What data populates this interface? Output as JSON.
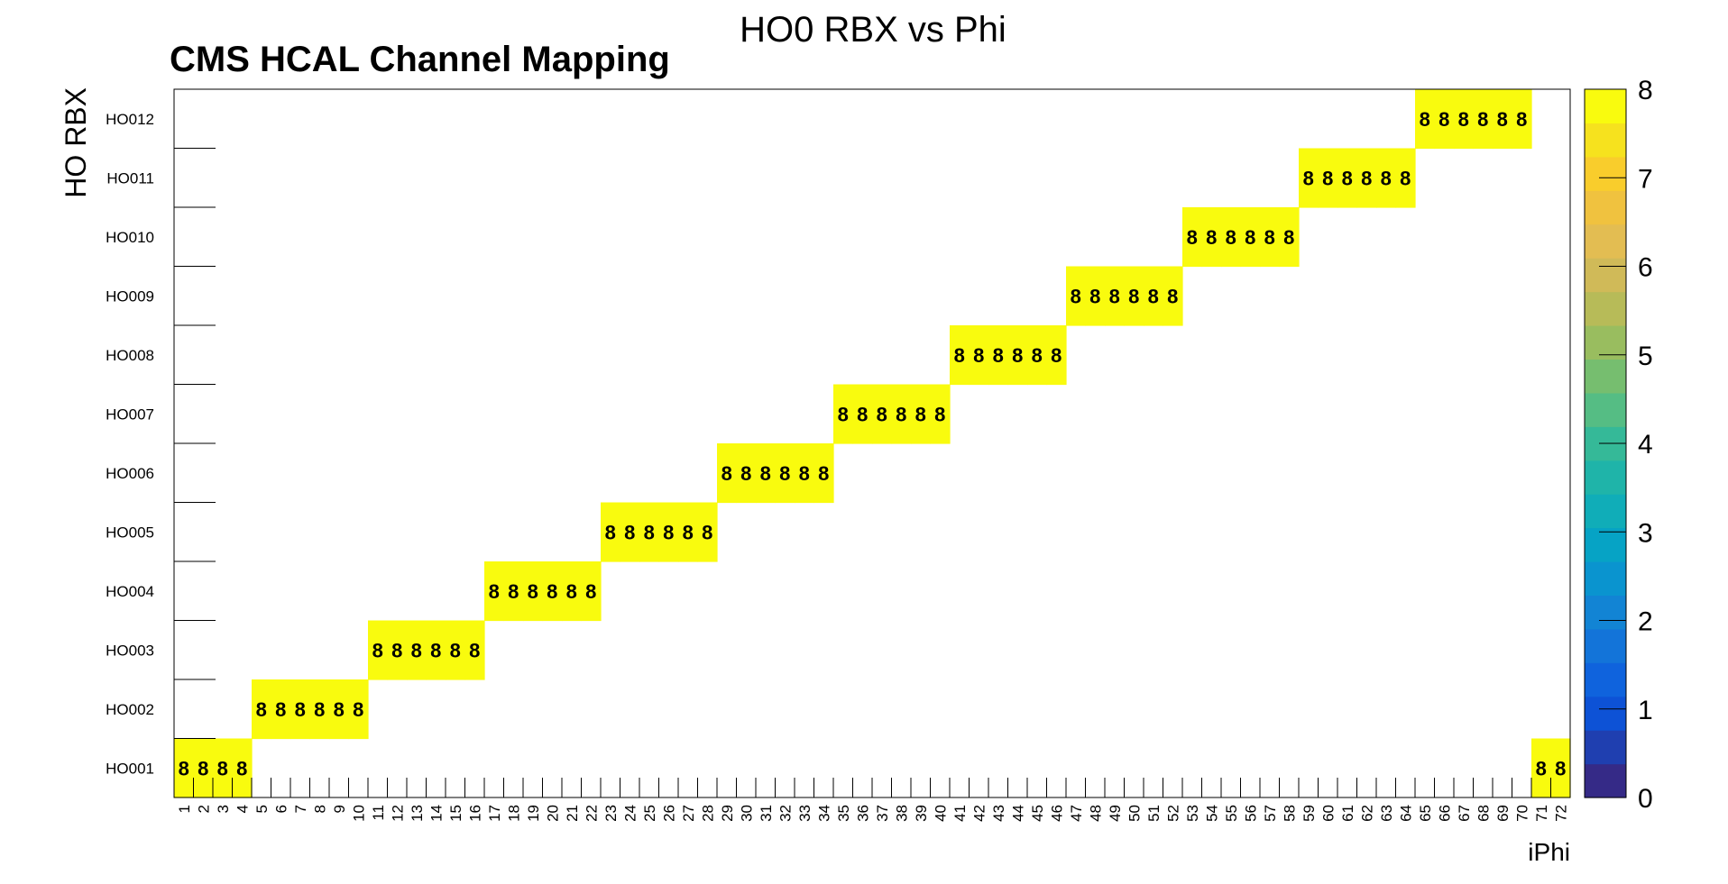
{
  "chart_data": {
    "type": "heatmap",
    "title": "HO0 RBX vs Phi",
    "subtitle": "CMS HCAL Channel Mapping",
    "xlabel": "iPhi",
    "ylabel": "HO RBX",
    "x_categories": [
      "1",
      "2",
      "3",
      "4",
      "5",
      "6",
      "7",
      "8",
      "9",
      "10",
      "11",
      "12",
      "13",
      "14",
      "15",
      "16",
      "17",
      "18",
      "19",
      "20",
      "21",
      "22",
      "23",
      "24",
      "25",
      "26",
      "27",
      "28",
      "29",
      "30",
      "31",
      "32",
      "33",
      "34",
      "35",
      "36",
      "37",
      "38",
      "39",
      "40",
      "41",
      "42",
      "43",
      "44",
      "45",
      "46",
      "47",
      "48",
      "49",
      "50",
      "51",
      "52",
      "53",
      "54",
      "55",
      "56",
      "57",
      "58",
      "59",
      "60",
      "61",
      "62",
      "63",
      "64",
      "65",
      "66",
      "67",
      "68",
      "69",
      "70",
      "71",
      "72"
    ],
    "y_categories": [
      "HO001",
      "HO002",
      "HO003",
      "HO004",
      "HO005",
      "HO006",
      "HO007",
      "HO008",
      "HO009",
      "HO010",
      "HO011",
      "HO012"
    ],
    "zlim": [
      0,
      8
    ],
    "colorbar_ticks": [
      "0",
      "1",
      "2",
      "3",
      "4",
      "5",
      "6",
      "7",
      "8"
    ],
    "cells": [
      {
        "rbx": "HO001",
        "iphi": [
          1,
          2,
          3,
          4,
          71,
          72
        ],
        "value": 8
      },
      {
        "rbx": "HO002",
        "iphi": [
          5,
          6,
          7,
          8,
          9,
          10
        ],
        "value": 8
      },
      {
        "rbx": "HO003",
        "iphi": [
          11,
          12,
          13,
          14,
          15,
          16
        ],
        "value": 8
      },
      {
        "rbx": "HO004",
        "iphi": [
          17,
          18,
          19,
          20,
          21,
          22
        ],
        "value": 8
      },
      {
        "rbx": "HO005",
        "iphi": [
          23,
          24,
          25,
          26,
          27,
          28
        ],
        "value": 8
      },
      {
        "rbx": "HO006",
        "iphi": [
          29,
          30,
          31,
          32,
          33,
          34
        ],
        "value": 8
      },
      {
        "rbx": "HO007",
        "iphi": [
          35,
          36,
          37,
          38,
          39,
          40
        ],
        "value": 8
      },
      {
        "rbx": "HO008",
        "iphi": [
          41,
          42,
          43,
          44,
          45,
          46
        ],
        "value": 8
      },
      {
        "rbx": "HO009",
        "iphi": [
          47,
          48,
          49,
          50,
          51,
          52
        ],
        "value": 8
      },
      {
        "rbx": "HO010",
        "iphi": [
          53,
          54,
          55,
          56,
          57,
          58
        ],
        "value": 8
      },
      {
        "rbx": "HO011",
        "iphi": [
          59,
          60,
          61,
          62,
          63,
          64
        ],
        "value": 8
      },
      {
        "rbx": "HO012",
        "iphi": [
          65,
          66,
          67,
          68,
          69,
          70
        ],
        "value": 8
      }
    ],
    "palette": [
      "#352a87",
      "#1f3fb0",
      "#0d52d6",
      "#0f63dd",
      "#1374d9",
      "#1284d4",
      "#0a94cf",
      "#06a3c5",
      "#10adb8",
      "#1fb4a9",
      "#35b998",
      "#55bd84",
      "#76be6f",
      "#99bd5f",
      "#b7bb58",
      "#d0ba58",
      "#e3bd52",
      "#f0c23f",
      "#f9cd2c",
      "#f6e21e",
      "#f9fb0e"
    ],
    "cell_color": "#f9fb0e",
    "grid": false,
    "legend": "colorbar-right"
  }
}
